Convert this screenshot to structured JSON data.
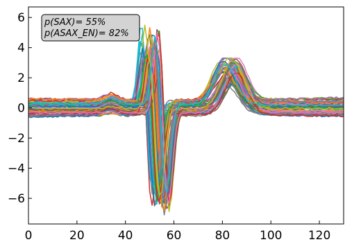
{
  "chart_data": {
    "type": "line",
    "title": "",
    "xlabel": "",
    "ylabel": "",
    "xlim": [
      0,
      130
    ],
    "ylim": [
      -7.7,
      6.7
    ],
    "x_ticks": [
      0,
      20,
      40,
      60,
      80,
      100,
      120
    ],
    "y_ticks": [
      -6,
      -4,
      -2,
      0,
      2,
      4,
      6
    ],
    "x_tick_labels": [
      "0",
      "20",
      "40",
      "60",
      "80",
      "100",
      "120"
    ],
    "y_tick_labels": [
      "−6",
      "−4",
      "−2",
      "0",
      "2",
      "4",
      "6"
    ],
    "grid": false,
    "legend_position": "top-left",
    "annotation": {
      "line1": "p(SAX)= 55%",
      "line2": "p(ASAX_EN)= 82%"
    },
    "series_count": 60,
    "series_note": "Approx. 60 overlaid traces following the depicted shape: baseline near 0 (≈-1 to 0.8) for x 0–45, positive spike to ≈+3 to +6 at x≈47–57, sharp drop to ≈-5 to -7 at x≈50–60, recovery near 0 by x≈62, broad bump to ≈+2 to +3.3 at x≈78–88, back near 0 after x≈95 to 130.",
    "colors": [
      "#1f77b4",
      "#ff7f0e",
      "#2ca02c",
      "#d62728",
      "#9467bd",
      "#8c564b",
      "#e377c2",
      "#7f7f7f",
      "#bcbd22",
      "#17becf"
    ]
  }
}
